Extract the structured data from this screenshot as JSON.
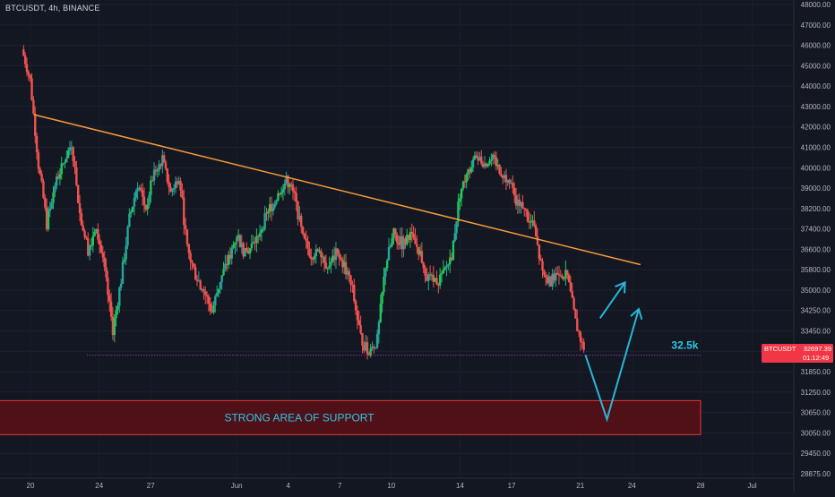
{
  "header": {
    "symbol_line": "BTCUSDT, 4h, BINANCE"
  },
  "price_badge": {
    "symbol": "BTCUSDT",
    "price": "32697.39",
    "countdown": "01:12:49",
    "color": "#f23645"
  },
  "annotations": {
    "support_text": "STRONG AREA OF SUPPORT",
    "level_label": "32.5k"
  },
  "colors": {
    "background": "#131722",
    "up_candle": "#26a69a",
    "up_candle_bright": "#22c55e",
    "down_candle": "#ef5350",
    "trendline": "#f59a3a",
    "support_zone_fill": "#5a0f16",
    "support_zone_border": "#e53935",
    "support_text": "#2ec7e6",
    "arrows": "#29b6d8",
    "dotted_level": "#b04ad8",
    "axis_text": "#b2b5be"
  },
  "chart_data": {
    "type": "candlestick",
    "title": "BTCUSDT, 4h, BINANCE",
    "y_axis": {
      "position": "right",
      "tick_labels": [
        "48000.00",
        "47000.00",
        "46000.00",
        "45000.00",
        "44000.00",
        "43000.00",
        "42000.00",
        "41000.00",
        "40000.00",
        "39000.00",
        "38200.00",
        "37400.00",
        "36600.00",
        "35800.00",
        "35000.00",
        "34250.00",
        "33450.00",
        "32650.00",
        "31850.00",
        "31250.00",
        "30650.00",
        "30050.00",
        "29450.00",
        "28875.00"
      ]
    },
    "x_axis": {
      "tick_labels": [
        "20",
        "24",
        "27",
        "Jun",
        "4",
        "7",
        "10",
        "14",
        "17",
        "21",
        "24",
        "28",
        "Jul"
      ]
    },
    "last_price": 32697.39,
    "horizontal_level": 32500,
    "support_zone": [
      30000,
      31000
    ],
    "trendline": [
      {
        "date": "May 20",
        "price": 42600
      },
      {
        "date": "Jun 24",
        "price": 36000
      }
    ],
    "projection_arrows": [
      {
        "name": "up-move",
        "points": [
          {
            "date": "Jun 22",
            "price": 33950
          },
          {
            "date": "Jun 23",
            "price": 35300
          }
        ]
      },
      {
        "name": "down-then-up",
        "points": [
          {
            "date": "Jun 21",
            "price": 32500
          },
          {
            "date": "Jun 22",
            "price": 30450
          },
          {
            "date": "Jun 24",
            "price": 34300
          }
        ]
      }
    ],
    "price_path": [
      {
        "date": "May 19",
        "price": 45800
      },
      {
        "date": "May 19",
        "price": 44300
      },
      {
        "date": "May 20",
        "price": 40100
      },
      {
        "date": "May 20",
        "price": 37600
      },
      {
        "date": "May 21",
        "price": 39200
      },
      {
        "date": "May 21",
        "price": 40200
      },
      {
        "date": "May 21",
        "price": 41200
      },
      {
        "date": "May 22",
        "price": 38000
      },
      {
        "date": "May 22",
        "price": 36600
      },
      {
        "date": "May 23",
        "price": 37600
      },
      {
        "date": "May 23",
        "price": 35700
      },
      {
        "date": "May 24",
        "price": 33500
      },
      {
        "date": "May 24",
        "price": 35400
      },
      {
        "date": "May 25",
        "price": 37800
      },
      {
        "date": "May 25",
        "price": 39200
      },
      {
        "date": "May 26",
        "price": 38200
      },
      {
        "date": "May 26",
        "price": 39800
      },
      {
        "date": "May 27",
        "price": 40400
      },
      {
        "date": "May 27",
        "price": 38800
      },
      {
        "date": "May 28",
        "price": 39600
      },
      {
        "date": "May 28",
        "price": 36600
      },
      {
        "date": "May 29",
        "price": 35600
      },
      {
        "date": "May 29",
        "price": 35000
      },
      {
        "date": "May 30",
        "price": 34200
      },
      {
        "date": "May 30",
        "price": 35400
      },
      {
        "date": "May 31",
        "price": 36200
      },
      {
        "date": "May 31",
        "price": 37200
      },
      {
        "date": "Jun 1",
        "price": 36400
      },
      {
        "date": "Jun 1",
        "price": 36800
      },
      {
        "date": "Jun 2",
        "price": 37500
      },
      {
        "date": "Jun 2",
        "price": 38200
      },
      {
        "date": "Jun 3",
        "price": 38800
      },
      {
        "date": "Jun 3",
        "price": 39400
      },
      {
        "date": "Jun 4",
        "price": 38700
      },
      {
        "date": "Jun 4",
        "price": 37000
      },
      {
        "date": "Jun 5",
        "price": 36400
      },
      {
        "date": "Jun 5",
        "price": 36700
      },
      {
        "date": "Jun 6",
        "price": 35900
      },
      {
        "date": "Jun 6",
        "price": 36400
      },
      {
        "date": "Jun 7",
        "price": 36000
      },
      {
        "date": "Jun 7",
        "price": 35000
      },
      {
        "date": "Jun 8",
        "price": 33200
      },
      {
        "date": "Jun 8",
        "price": 32500
      },
      {
        "date": "Jun 9",
        "price": 33100
      },
      {
        "date": "Jun 9",
        "price": 36000
      },
      {
        "date": "Jun 10",
        "price": 37200
      },
      {
        "date": "Jun 10",
        "price": 36800
      },
      {
        "date": "Jun 11",
        "price": 37100
      },
      {
        "date": "Jun 11",
        "price": 36600
      },
      {
        "date": "Jun 12",
        "price": 35600
      },
      {
        "date": "Jun 12",
        "price": 35300
      },
      {
        "date": "Jun 13",
        "price": 35600
      },
      {
        "date": "Jun 13",
        "price": 36400
      },
      {
        "date": "Jun 14",
        "price": 38800
      },
      {
        "date": "Jun 14",
        "price": 39800
      },
      {
        "date": "Jun 15",
        "price": 40600
      },
      {
        "date": "Jun 15",
        "price": 40200
      },
      {
        "date": "Jun 16",
        "price": 40400
      },
      {
        "date": "Jun 16",
        "price": 39800
      },
      {
        "date": "Jun 17",
        "price": 39200
      },
      {
        "date": "Jun 17",
        "price": 38400
      },
      {
        "date": "Jun 18",
        "price": 38000
      },
      {
        "date": "Jun 18",
        "price": 37400
      },
      {
        "date": "Jun 19",
        "price": 35600
      },
      {
        "date": "Jun 19",
        "price": 35300
      },
      {
        "date": "Jun 20",
        "price": 35800
      },
      {
        "date": "Jun 20",
        "price": 35500
      },
      {
        "date": "Jun 21",
        "price": 33800
      },
      {
        "date": "Jun 21",
        "price": 32700
      }
    ]
  }
}
